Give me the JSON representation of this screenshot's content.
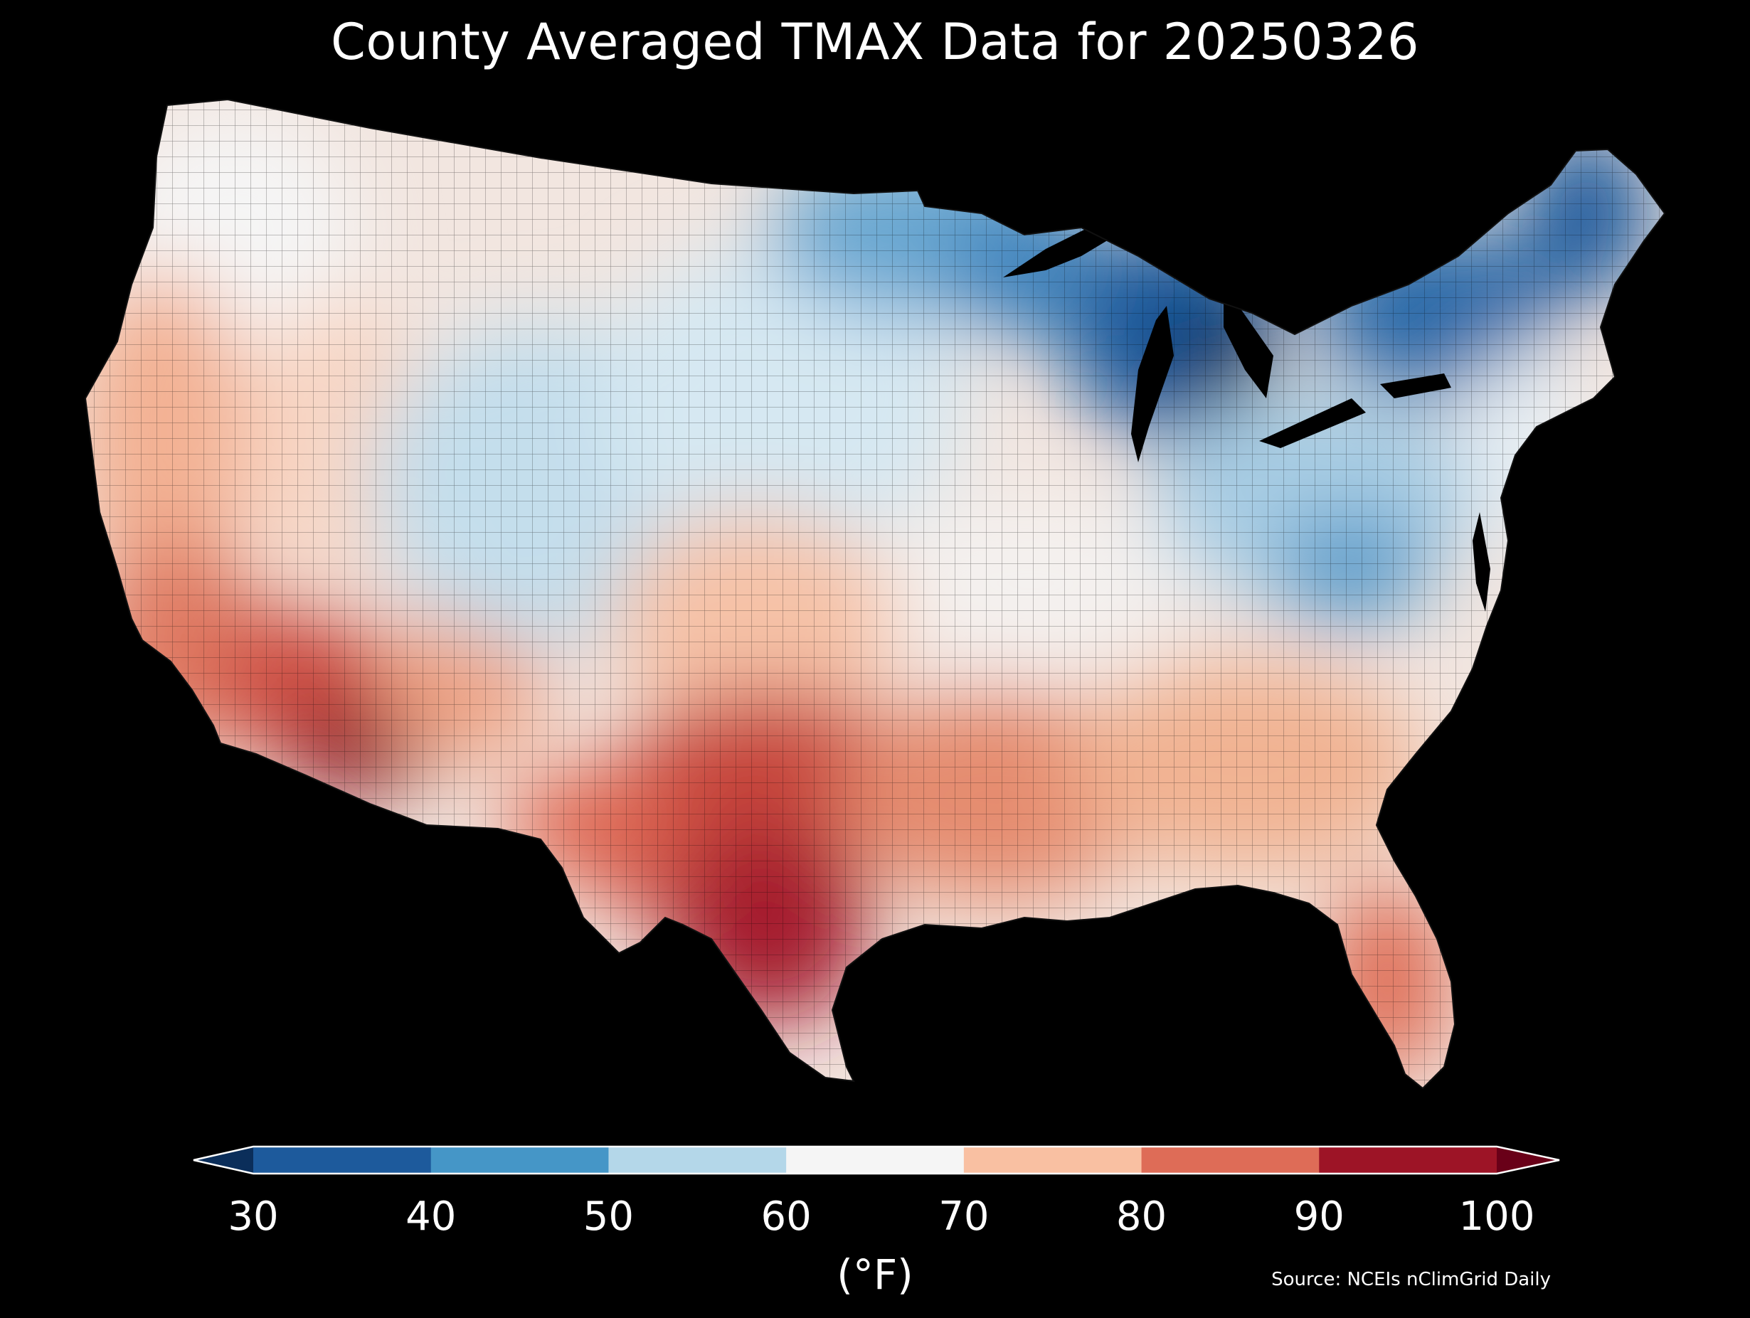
{
  "title": "County Averaged TMAX Data for 20250326",
  "colorbar": {
    "ticks": [
      "30",
      "40",
      "50",
      "60",
      "70",
      "80",
      "90",
      "100"
    ],
    "bins": [
      {
        "from": 30,
        "to": 40,
        "color": "#1d5a9c"
      },
      {
        "from": 40,
        "to": 50,
        "color": "#4596c7"
      },
      {
        "from": 50,
        "to": 60,
        "color": "#b4d7e9"
      },
      {
        "from": 60,
        "to": 70,
        "color": "#f5f5f5"
      },
      {
        "from": 70,
        "to": 80,
        "color": "#f9c0a2"
      },
      {
        "from": 80,
        "to": 90,
        "color": "#de6c57"
      },
      {
        "from": 90,
        "to": 100,
        "color": "#9d1426"
      }
    ],
    "under_color": "#0b2e5a",
    "over_color": "#690018",
    "units": "(°F)"
  },
  "source": "Source: NCEIs nClimGrid Daily",
  "map": {
    "region": "contiguous United States (county level)",
    "regions": [
      {
        "name": "pacific-northwest",
        "value_f": 66
      },
      {
        "name": "california-coast",
        "value_f": 78
      },
      {
        "name": "nevada-utah",
        "value_f": 71
      },
      {
        "name": "arizona-lowdesert",
        "value_f": 93
      },
      {
        "name": "northern-rockies-plains",
        "value_f": 58
      },
      {
        "name": "central-plains",
        "value_f": 67
      },
      {
        "name": "texas",
        "value_f": 86
      },
      {
        "name": "south-texas",
        "value_f": 92
      },
      {
        "name": "minnesota-wisconsin",
        "value_f": 47
      },
      {
        "name": "michigan",
        "value_f": 36
      },
      {
        "name": "ohio-valley",
        "value_f": 58
      },
      {
        "name": "appalachians",
        "value_f": 48
      },
      {
        "name": "southeast",
        "value_f": 77
      },
      {
        "name": "florida",
        "value_f": 82
      },
      {
        "name": "new-york-new-england",
        "value_f": 40
      },
      {
        "name": "maine",
        "value_f": 37
      },
      {
        "name": "mid-atlantic",
        "value_f": 61
      }
    ]
  }
}
